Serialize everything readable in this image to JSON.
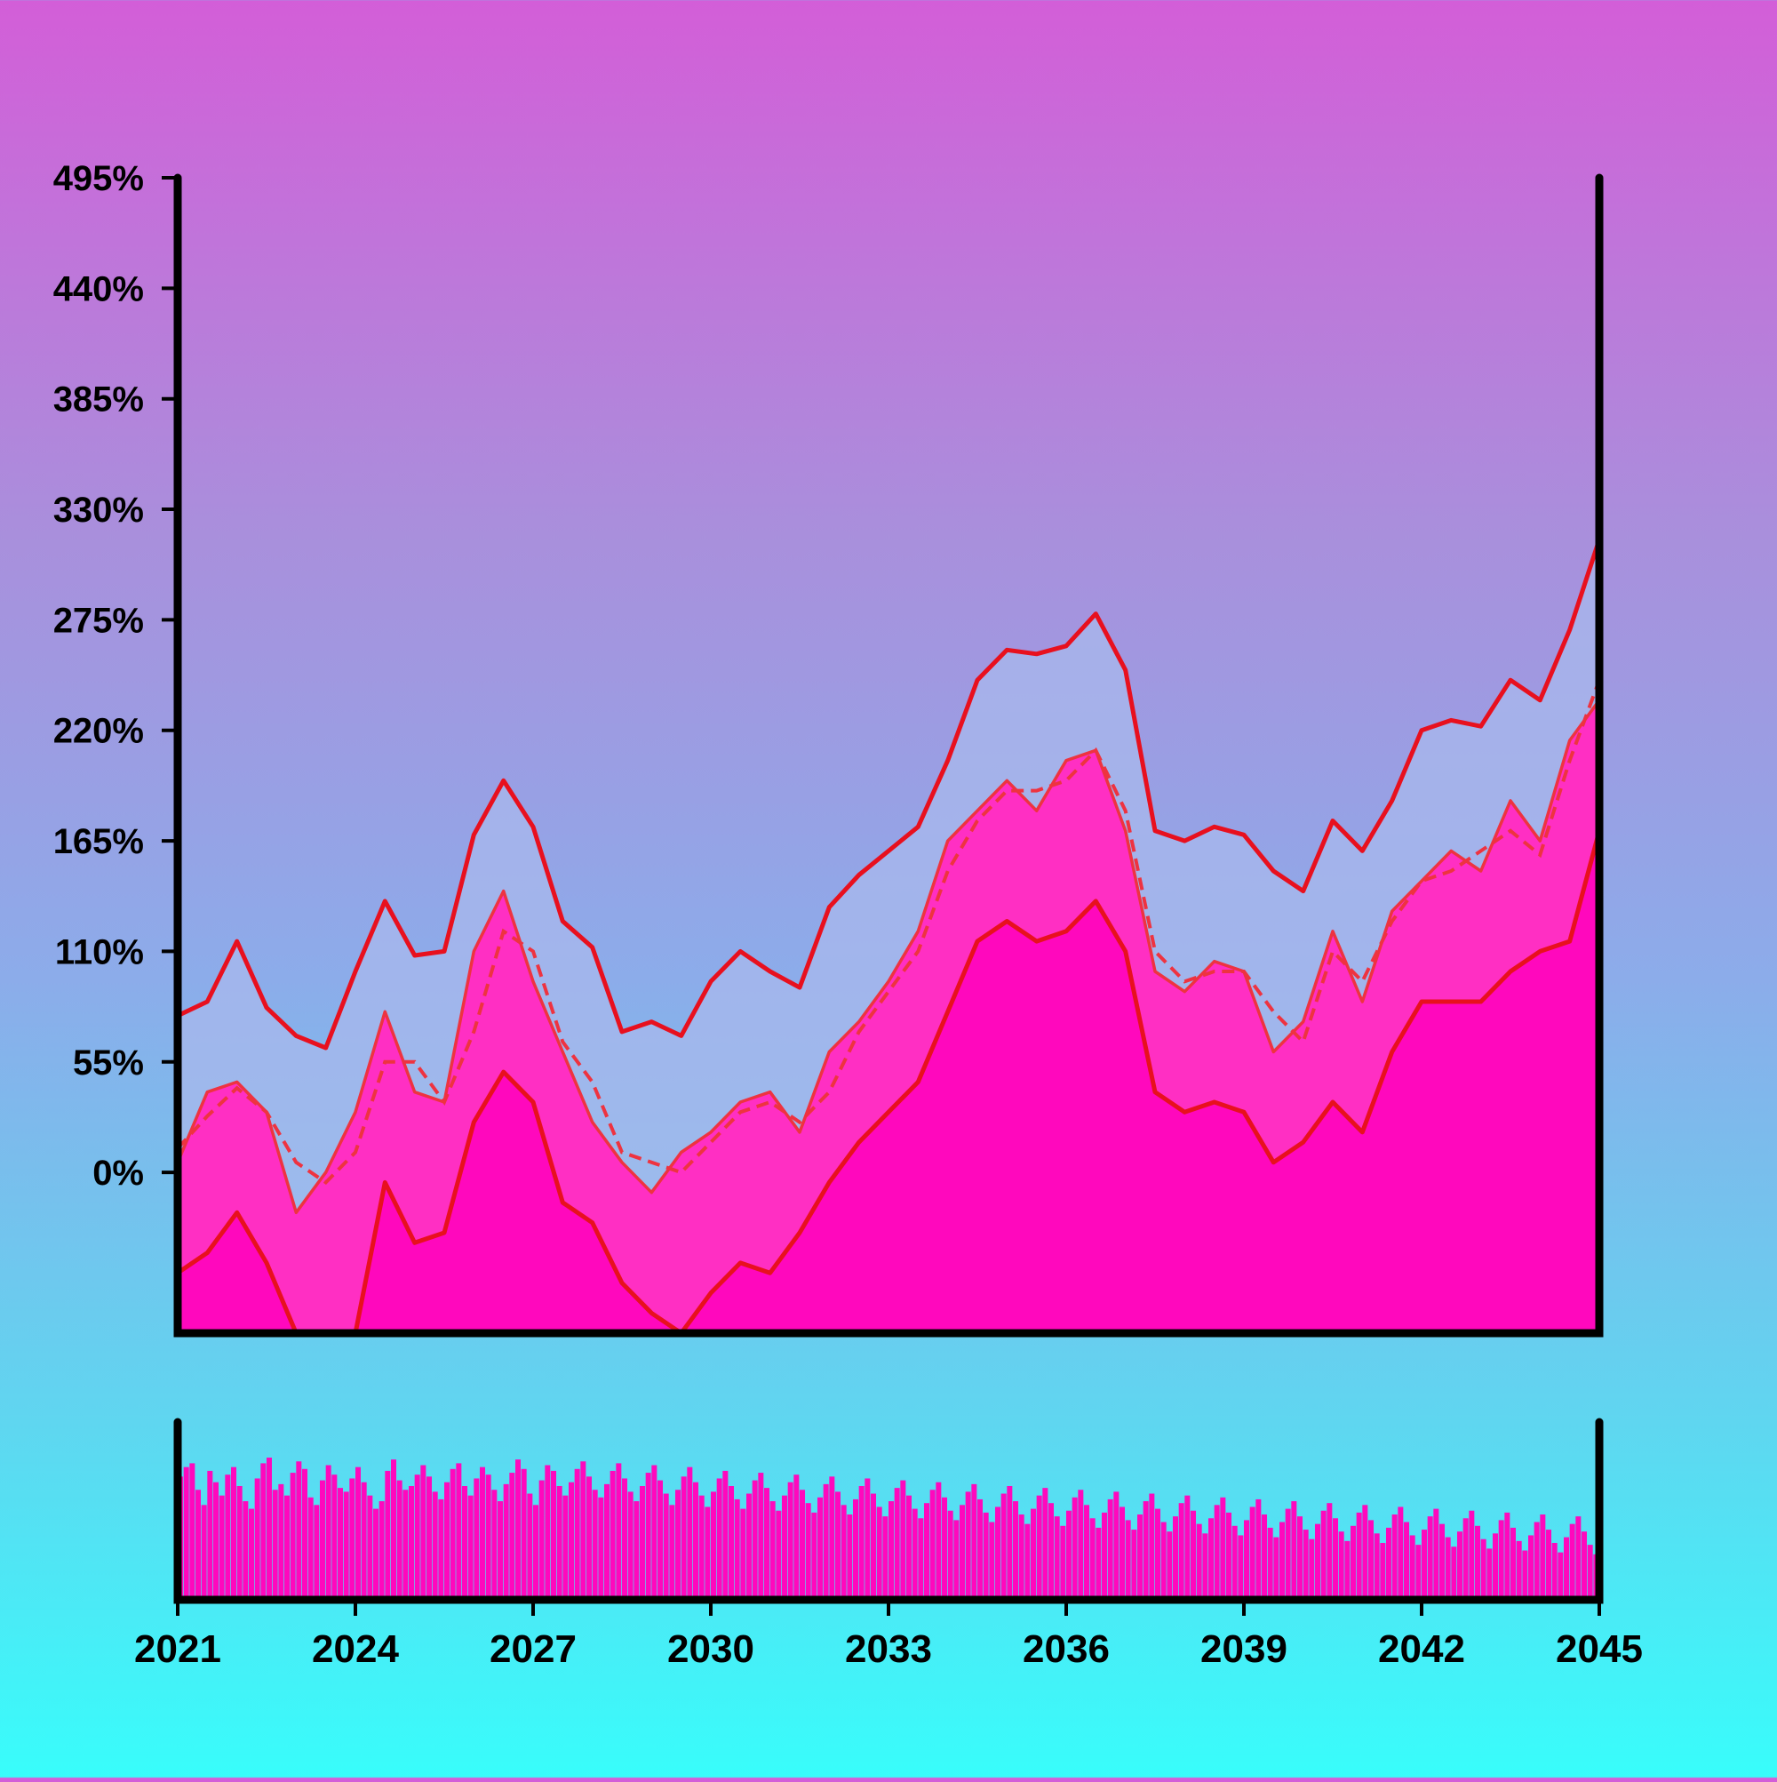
{
  "chart_data": {
    "type": "line",
    "title": "",
    "xlabel": "",
    "ylabel": "",
    "x_range": [
      2021,
      2045
    ],
    "ylim": [
      -80,
      495
    ],
    "y_unit": "%",
    "x_ticks": [
      "2021",
      "2024",
      "2027",
      "2030",
      "2033",
      "2036",
      "2039",
      "2042",
      "2045"
    ],
    "y_ticks": [
      "0%",
      "55%",
      "110%",
      "165%",
      "220%",
      "275%",
      "330%",
      "385%",
      "440%",
      "495%"
    ],
    "y_tick_values": [
      0,
      55,
      110,
      165,
      220,
      275,
      330,
      385,
      440,
      495
    ],
    "grid": false,
    "legend": "none",
    "colors": {
      "line": "#e8101e",
      "band_upper_fill": "#a8b8ec",
      "band_mid_fill": "#ff2fc3",
      "band_lower_fill": "#ff08bd",
      "volume_bars": "#ff08bd",
      "axis": "#000000"
    },
    "series": [
      {
        "role": "upper_band",
        "x": [
          2021.0,
          2021.5,
          2022.0,
          2022.5,
          2023.0,
          2023.5,
          2024.0,
          2024.5,
          2025.0,
          2025.5,
          2026.0,
          2026.5,
          2027.0,
          2027.5,
          2028.0,
          2028.5,
          2029.0,
          2029.5,
          2030.0,
          2030.5,
          2031.0,
          2031.5,
          2032.0,
          2032.5,
          2033.0,
          2033.5,
          2034.0,
          2034.5,
          2035.0,
          2035.5,
          2036.0,
          2036.5,
          2037.0,
          2037.5,
          2038.0,
          2038.5,
          2039.0,
          2039.5,
          2040.0,
          2040.5,
          2041.0,
          2041.5,
          2042.0,
          2042.5,
          2043.0,
          2043.5,
          2044.0,
          2044.5,
          2045.0
        ],
        "y": [
          78,
          85,
          115,
          82,
          68,
          62,
          100,
          135,
          108,
          110,
          168,
          195,
          172,
          125,
          112,
          70,
          75,
          68,
          95,
          110,
          100,
          92,
          132,
          148,
          160,
          172,
          205,
          245,
          260,
          258,
          262,
          278,
          250,
          170,
          165,
          172,
          168,
          150,
          140,
          175,
          160,
          185,
          220,
          225,
          222,
          245,
          235,
          270,
          315
        ]
      },
      {
        "role": "oscillating",
        "x": [
          2021.0,
          2021.5,
          2022.0,
          2022.5,
          2023.0,
          2023.5,
          2024.0,
          2024.5,
          2025.0,
          2025.5,
          2026.0,
          2026.5,
          2027.0,
          2027.5,
          2028.0,
          2028.5,
          2029.0,
          2029.5,
          2030.0,
          2030.5,
          2031.0,
          2031.5,
          2032.0,
          2032.5,
          2033.0,
          2033.5,
          2034.0,
          2034.5,
          2035.0,
          2035.5,
          2036.0,
          2036.5,
          2037.0,
          2037.5,
          2038.0,
          2038.5,
          2039.0,
          2039.5,
          2040.0,
          2040.5,
          2041.0,
          2041.5,
          2042.0,
          2042.5,
          2043.0,
          2043.5,
          2044.0,
          2044.5,
          2045.0
        ],
        "y": [
          5,
          40,
          45,
          30,
          -20,
          0,
          30,
          80,
          40,
          35,
          110,
          140,
          95,
          60,
          25,
          5,
          -10,
          10,
          20,
          35,
          40,
          20,
          60,
          75,
          95,
          120,
          165,
          180,
          195,
          180,
          205,
          210,
          170,
          100,
          90,
          105,
          100,
          60,
          75,
          120,
          85,
          130,
          145,
          160,
          150,
          185,
          165,
          215,
          235
        ]
      },
      {
        "role": "moving_average",
        "style": "dashed",
        "x": [
          2021.0,
          2021.5,
          2022.0,
          2022.5,
          2023.0,
          2023.5,
          2024.0,
          2024.5,
          2025.0,
          2025.5,
          2026.0,
          2026.5,
          2027.0,
          2027.5,
          2028.0,
          2028.5,
          2029.0,
          2029.5,
          2030.0,
          2030.5,
          2031.0,
          2031.5,
          2032.0,
          2032.5,
          2033.0,
          2033.5,
          2034.0,
          2034.5,
          2035.0,
          2035.5,
          2036.0,
          2036.5,
          2037.0,
          2037.5,
          2038.0,
          2038.5,
          2039.0,
          2039.5,
          2040.0,
          2040.5,
          2041.0,
          2041.5,
          2042.0,
          2042.5,
          2043.0,
          2043.5,
          2044.0,
          2044.5,
          2045.0
        ],
        "y": [
          12,
          28,
          42,
          30,
          5,
          -5,
          10,
          55,
          55,
          35,
          70,
          120,
          110,
          65,
          45,
          10,
          5,
          0,
          15,
          30,
          35,
          25,
          40,
          70,
          90,
          110,
          150,
          175,
          190,
          190,
          195,
          210,
          180,
          110,
          95,
          100,
          100,
          80,
          65,
          110,
          95,
          125,
          145,
          150,
          160,
          170,
          158,
          205,
          245
        ]
      },
      {
        "role": "lower_band",
        "x": [
          2021.0,
          2021.5,
          2022.0,
          2022.5,
          2023.0,
          2023.5,
          2024.0,
          2024.5,
          2025.0,
          2025.5,
          2026.0,
          2026.5,
          2027.0,
          2027.5,
          2028.0,
          2028.5,
          2029.0,
          2029.5,
          2030.0,
          2030.5,
          2031.0,
          2031.5,
          2032.0,
          2032.5,
          2033.0,
          2033.5,
          2034.0,
          2034.5,
          2035.0,
          2035.5,
          2036.0,
          2036.5,
          2037.0,
          2037.5,
          2038.0,
          2038.5,
          2039.0,
          2039.5,
          2040.0,
          2040.5,
          2041.0,
          2041.5,
          2042.0,
          2042.5,
          2043.0,
          2043.5,
          2044.0,
          2044.5,
          2045.0
        ],
        "y": [
          -50,
          -40,
          -20,
          -45,
          -90,
          -120,
          -80,
          -5,
          -35,
          -30,
          25,
          50,
          35,
          -15,
          -25,
          -55,
          -70,
          -100,
          -60,
          -45,
          -50,
          -30,
          -5,
          15,
          30,
          45,
          80,
          115,
          125,
          115,
          120,
          135,
          110,
          40,
          30,
          35,
          30,
          5,
          15,
          35,
          20,
          60,
          85,
          85,
          85,
          100,
          110,
          115,
          170
        ]
      }
    ],
    "volume": {
      "type": "bar",
      "x_range": [
        2021,
        2045
      ],
      "count": 240,
      "values": [
        65,
        70,
        72,
        58,
        50,
        68,
        62,
        55,
        66,
        70,
        60,
        52,
        48,
        64,
        72,
        75,
        58,
        61,
        55,
        67,
        73,
        69,
        54,
        50,
        63,
        71,
        66,
        59,
        57,
        64,
        70,
        62,
        55,
        48,
        52,
        68,
        74,
        63,
        58,
        60,
        66,
        71,
        65,
        57,
        53,
        62,
        69,
        72,
        60,
        55,
        64,
        70,
        66,
        58,
        52,
        61,
        67,
        74,
        69,
        56,
        50,
        63,
        71,
        68,
        60,
        55,
        62,
        69,
        73,
        65,
        58,
        54,
        61,
        68,
        72,
        64,
        57,
        52,
        60,
        67,
        71,
        63,
        56,
        50,
        58,
        65,
        70,
        62,
        55,
        49,
        57,
        64,
        68,
        60,
        53,
        48,
        56,
        63,
        67,
        59,
        52,
        47,
        55,
        62,
        66,
        58,
        51,
        46,
        54,
        61,
        65,
        57,
        50,
        45,
        53,
        60,
        64,
        56,
        49,
        44,
        52,
        59,
        63,
        55,
        48,
        43,
        51,
        58,
        62,
        54,
        47,
        42,
        50,
        57,
        61,
        53,
        46,
        41,
        49,
        56,
        60,
        52,
        45,
        40,
        48,
        55,
        59,
        51,
        44,
        39,
        47,
        54,
        58,
        50,
        43,
        38,
        46,
        53,
        57,
        49,
        42,
        37,
        45,
        52,
        56,
        48,
        41,
        36,
        44,
        51,
        55,
        47,
        40,
        35,
        43,
        50,
        54,
        46,
        39,
        34,
        42,
        49,
        53,
        45,
        38,
        33,
        41,
        48,
        52,
        44,
        37,
        32,
        40,
        47,
        51,
        43,
        36,
        31,
        39,
        46,
        50,
        42,
        35,
        30,
        38,
        45,
        49,
        41,
        34,
        29,
        37,
        44,
        48,
        40,
        33,
        28,
        36,
        43,
        47,
        39,
        32,
        27,
        35,
        42,
        46,
        38,
        31,
        26,
        34,
        41,
        45,
        37,
        30,
        25,
        33,
        40,
        44,
        36,
        29,
        24
      ]
    }
  }
}
